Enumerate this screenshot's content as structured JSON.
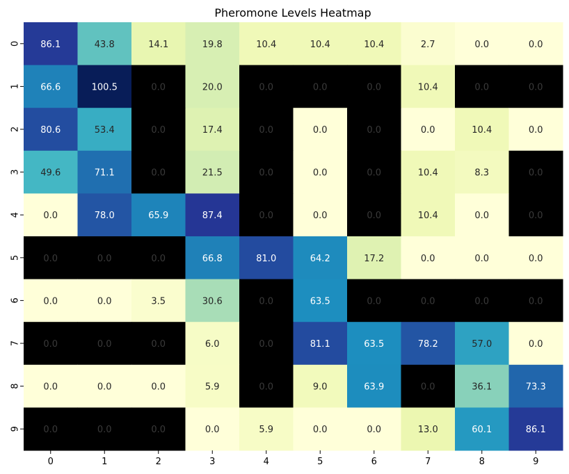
{
  "chart_data": {
    "type": "heatmap",
    "title": "Pheromone Levels Heatmap",
    "xlabel": "",
    "ylabel": "",
    "x_ticks": [
      "0",
      "1",
      "2",
      "3",
      "4",
      "5",
      "6",
      "7",
      "8",
      "9"
    ],
    "y_ticks": [
      "0",
      "1",
      "2",
      "3",
      "4",
      "5",
      "6",
      "7",
      "8",
      "9"
    ],
    "colormap": "YlGnBu",
    "vmin": 0,
    "vmax": 100.5,
    "colorbar": false,
    "masked_color": "#000000",
    "values": [
      [
        "86.1",
        "43.8",
        "14.1",
        "19.8",
        "10.4",
        "10.4",
        "10.4",
        "2.7",
        "0.0",
        "0.0"
      ],
      [
        "66.6",
        "100.5",
        "0.0",
        "20.0",
        "0.0",
        "0.0",
        "0.0",
        "10.4",
        "0.0",
        "0.0"
      ],
      [
        "80.6",
        "53.4",
        "0.0",
        "17.4",
        "0.0",
        "0.0",
        "0.0",
        "0.0",
        "10.4",
        "0.0"
      ],
      [
        "49.6",
        "71.1",
        "0.0",
        "21.5",
        "0.0",
        "0.0",
        "0.0",
        "10.4",
        "8.3",
        "0.0"
      ],
      [
        "0.0",
        "78.0",
        "65.9",
        "87.4",
        "0.0",
        "0.0",
        "0.0",
        "10.4",
        "0.0",
        "0.0"
      ],
      [
        "0.0",
        "0.0",
        "0.0",
        "66.8",
        "81.0",
        "64.2",
        "17.2",
        "0.0",
        "0.0",
        "0.0"
      ],
      [
        "0.0",
        "0.0",
        "3.5",
        "30.6",
        "0.0",
        "63.5",
        "0.0",
        "0.0",
        "0.0",
        "0.0"
      ],
      [
        "0.0",
        "0.0",
        "0.0",
        "6.0",
        "0.0",
        "81.1",
        "63.5",
        "78.2",
        "57.0",
        "0.0"
      ],
      [
        "0.0",
        "0.0",
        "0.0",
        "5.9",
        "0.0",
        "9.0",
        "63.9",
        "0.0",
        "36.1",
        "73.3"
      ],
      [
        "0.0",
        "0.0",
        "0.0",
        "0.0",
        "5.9",
        "0.0",
        "0.0",
        "13.0",
        "60.1",
        "86.1"
      ]
    ],
    "masked": [
      [
        0,
        0,
        0,
        0,
        0,
        0,
        0,
        0,
        0,
        0
      ],
      [
        0,
        0,
        1,
        0,
        1,
        1,
        1,
        0,
        1,
        1
      ],
      [
        0,
        0,
        1,
        0,
        1,
        0,
        1,
        0,
        0,
        0
      ],
      [
        0,
        0,
        1,
        0,
        1,
        0,
        1,
        0,
        0,
        1
      ],
      [
        0,
        0,
        0,
        0,
        1,
        0,
        1,
        0,
        0,
        1
      ],
      [
        1,
        1,
        1,
        0,
        0,
        0,
        0,
        0,
        0,
        0
      ],
      [
        0,
        0,
        0,
        0,
        1,
        0,
        1,
        1,
        1,
        1
      ],
      [
        1,
        1,
        1,
        0,
        1,
        0,
        0,
        0,
        0,
        0
      ],
      [
        0,
        0,
        0,
        0,
        1,
        0,
        0,
        1,
        0,
        0
      ],
      [
        1,
        1,
        1,
        0,
        0,
        0,
        0,
        0,
        0,
        0
      ]
    ]
  }
}
